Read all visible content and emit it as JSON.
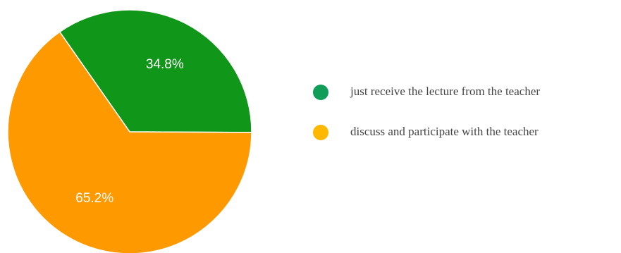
{
  "chart_data": {
    "type": "pie",
    "slices": [
      {
        "label": "just receive the lecture from the teacher",
        "value": 34.8,
        "display": "34.8%",
        "color": "#109618",
        "legend_color": "#0F9D58"
      },
      {
        "label": "discuss and participate with the teacher",
        "value": 65.2,
        "display": "65.2%",
        "color": "#FF9900",
        "legend_color": "#FFB800"
      }
    ],
    "start_angle_deg": -35,
    "legend_position": "right"
  }
}
